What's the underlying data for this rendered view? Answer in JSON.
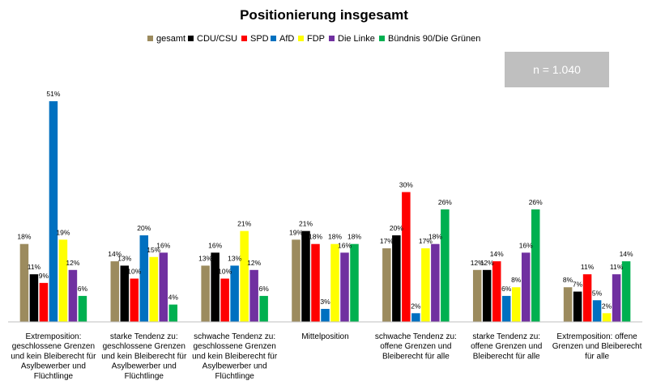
{
  "chart_data": {
    "type": "bar",
    "title": "Positionierung insgesamt",
    "annotation": "n = 1.040",
    "ylim": [
      0,
      55
    ],
    "legend_position": "top",
    "grid": false,
    "categories": [
      [
        "Extremposition:",
        "geschlossene Grenzen",
        "und kein Bleiberecht für",
        "Asylbewerber und",
        "Flüchtlinge"
      ],
      [
        "starke Tendenz zu:",
        "geschlossene Grenzen",
        "und kein Bleiberecht für",
        "Asylbewerber und",
        "Flüchtlinge"
      ],
      [
        "schwache Tendenz zu:",
        "geschlossene Grenzen",
        "und kein Bleiberecht für",
        "Asylbewerber und",
        "Flüchtlinge"
      ],
      [
        "Mittelposition"
      ],
      [
        "schwache Tendenz zu:",
        "offene Grenzen und",
        "Bleiberecht für alle"
      ],
      [
        "starke Tendenz zu:",
        "offene Grenzen und",
        "Bleiberecht für alle"
      ],
      [
        "Extremposition: offene",
        "Grenzen und Bleiberecht",
        "für alle"
      ]
    ],
    "series": [
      {
        "name": "gesamt",
        "color": "#9c8b5e",
        "values": [
          18,
          14,
          13,
          19,
          17,
          12,
          8
        ]
      },
      {
        "name": "CDU/CSU",
        "color": "#000000",
        "values": [
          11,
          13,
          16,
          21,
          20,
          12,
          7
        ]
      },
      {
        "name": "SPD",
        "color": "#ff0000",
        "values": [
          9,
          10,
          10,
          18,
          30,
          14,
          11
        ]
      },
      {
        "name": "AfD",
        "color": "#0070c0",
        "values": [
          51,
          20,
          13,
          3,
          2,
          6,
          5
        ]
      },
      {
        "name": "FDP",
        "color": "#ffff00",
        "values": [
          19,
          15,
          21,
          18,
          17,
          8,
          2
        ]
      },
      {
        "name": "Die Linke",
        "color": "#7030a0",
        "values": [
          12,
          16,
          12,
          16,
          18,
          16,
          11
        ]
      },
      {
        "name": "Bündnis 90/Die Grünen",
        "color": "#00b050",
        "values": [
          6,
          4,
          6,
          18,
          26,
          26,
          14
        ]
      }
    ]
  }
}
